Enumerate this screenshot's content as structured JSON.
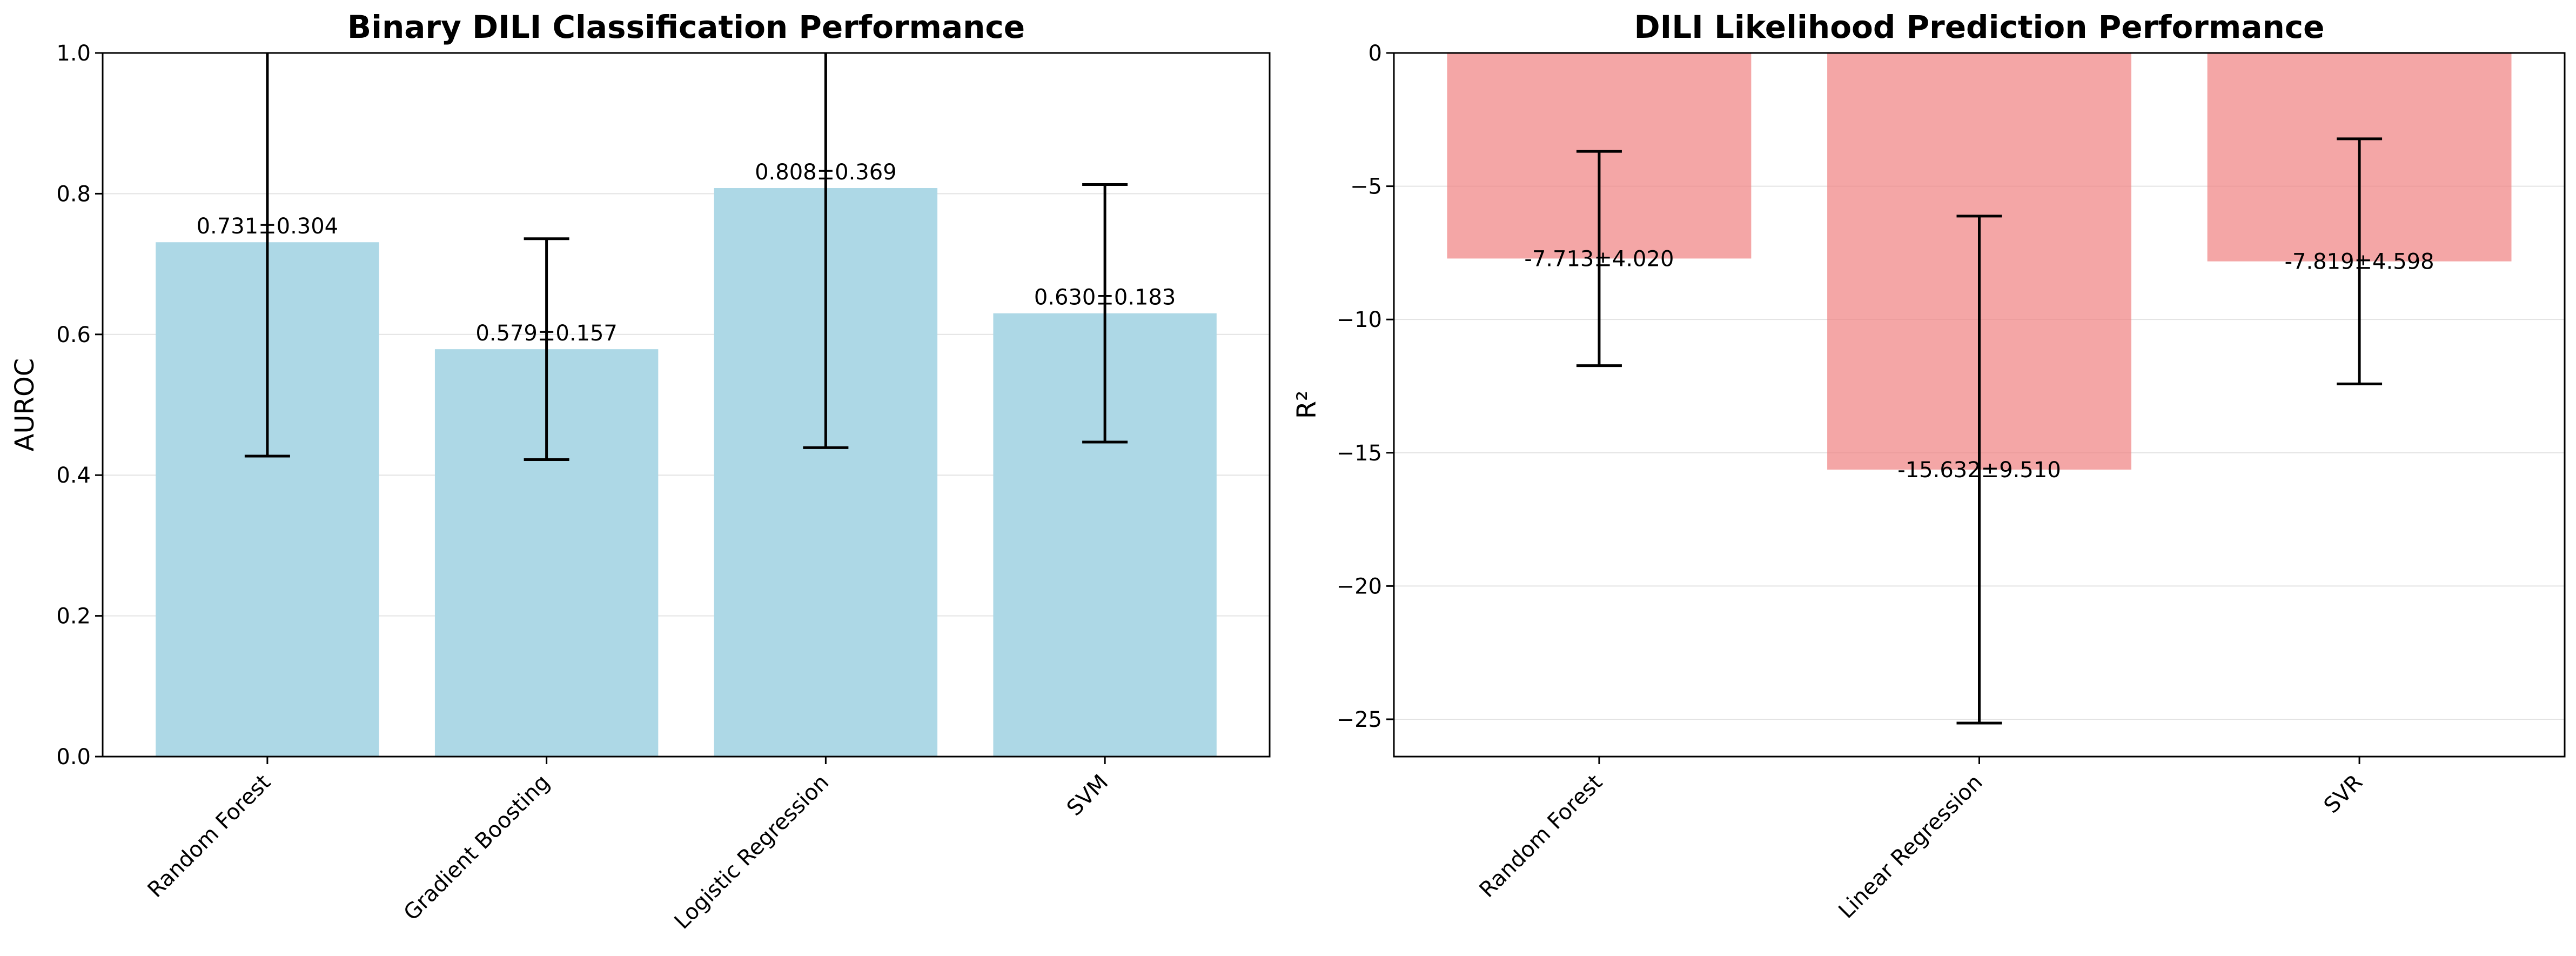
{
  "chart_data": [
    {
      "type": "bar",
      "title": "Binary DILI Classification Performance",
      "xlabel": "",
      "ylabel": "AUROC",
      "categories": [
        "Random Forest",
        "Gradient Boosting",
        "Logistic Regression",
        "SVM"
      ],
      "values": [
        0.731,
        0.579,
        0.808,
        0.63
      ],
      "errors": [
        0.304,
        0.157,
        0.369,
        0.183
      ],
      "data_labels": [
        "0.731±0.304",
        "0.579±0.157",
        "0.808±0.369",
        "0.630±0.183"
      ],
      "ylim": [
        0,
        1.0
      ],
      "yticks": [
        0.0,
        0.2,
        0.4,
        0.6,
        0.8,
        1.0
      ],
      "ytick_labels": [
        "0.0",
        "0.2",
        "0.4",
        "0.6",
        "0.8",
        "1.0"
      ],
      "bar_color": "#add8e6",
      "grid": true
    },
    {
      "type": "bar",
      "title": "DILI Likelihood Prediction Performance",
      "xlabel": "",
      "ylabel": "R²",
      "categories": [
        "Random Forest",
        "Linear Regression",
        "SVR"
      ],
      "values": [
        -7.713,
        -15.632,
        -7.819
      ],
      "errors": [
        4.02,
        9.51,
        4.598
      ],
      "data_labels": [
        "-7.713±4.020",
        "-15.632±9.510",
        "-7.819±4.598"
      ],
      "ylim": [
        -26.4,
        0
      ],
      "yticks": [
        0,
        -5,
        -10,
        -15,
        -20,
        -25
      ],
      "ytick_labels": [
        "0",
        "−5",
        "−10",
        "−15",
        "−20",
        "−25"
      ],
      "bar_color": "#f08080",
      "grid": true
    }
  ]
}
